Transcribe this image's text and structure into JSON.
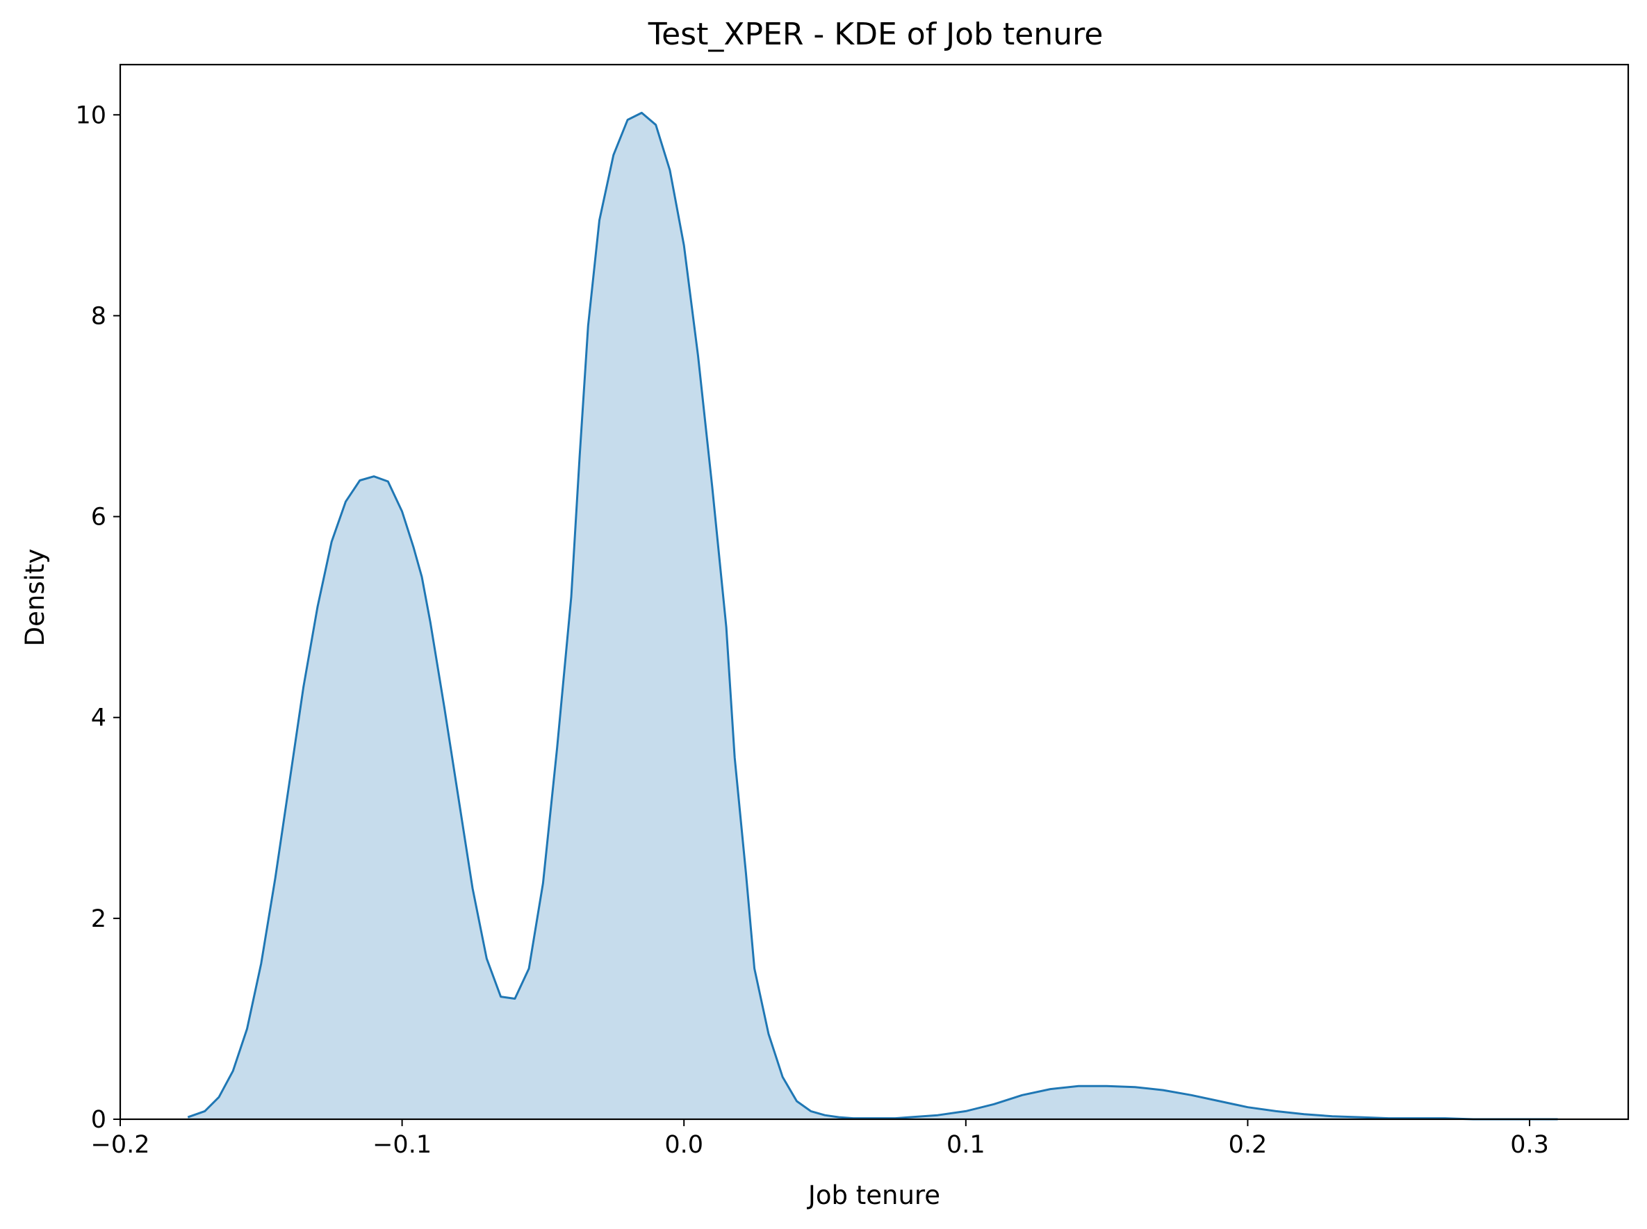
{
  "chart_data": {
    "type": "area",
    "title": "Test_XPER - KDE of Job tenure",
    "xlabel": "Job tenure",
    "ylabel": "Density",
    "xlim": [
      -0.2,
      0.335
    ],
    "ylim": [
      0,
      10.5
    ],
    "xticks": [
      {
        "value": -0.2,
        "label": "−0.2"
      },
      {
        "value": -0.1,
        "label": "−0.1"
      },
      {
        "value": 0.0,
        "label": "0.0"
      },
      {
        "value": 0.1,
        "label": "0.1"
      },
      {
        "value": 0.2,
        "label": "0.2"
      },
      {
        "value": 0.3,
        "label": "0.3"
      }
    ],
    "yticks": [
      {
        "value": 0,
        "label": "0"
      },
      {
        "value": 2,
        "label": "2"
      },
      {
        "value": 4,
        "label": "4"
      },
      {
        "value": 6,
        "label": "6"
      },
      {
        "value": 8,
        "label": "8"
      },
      {
        "value": 10,
        "label": "10"
      }
    ],
    "grid": false,
    "line_color": "#1f77b4",
    "fill_color": "#c6dcec",
    "series": [
      {
        "x": [
          -0.176,
          -0.17,
          -0.165,
          -0.16,
          -0.155,
          -0.15,
          -0.145,
          -0.14,
          -0.135,
          -0.13,
          -0.125,
          -0.12,
          -0.115,
          -0.11,
          -0.105,
          -0.1,
          -0.096,
          -0.093,
          -0.09,
          -0.085,
          -0.08,
          -0.075,
          -0.07,
          -0.065,
          -0.06,
          -0.055,
          -0.05,
          -0.045,
          -0.04,
          -0.037,
          -0.034,
          -0.03,
          -0.025,
          -0.02,
          -0.015,
          -0.01,
          -0.005,
          0.0,
          0.005,
          0.01,
          0.015,
          0.018,
          0.022,
          0.025,
          0.03,
          0.035,
          0.04,
          0.045,
          0.05,
          0.055,
          0.06,
          0.065,
          0.07,
          0.075,
          0.08,
          0.09,
          0.1,
          0.11,
          0.12,
          0.13,
          0.14,
          0.15,
          0.16,
          0.17,
          0.18,
          0.19,
          0.2,
          0.21,
          0.22,
          0.23,
          0.24,
          0.25,
          0.26,
          0.27,
          0.28,
          0.29,
          0.3,
          0.31
        ],
        "y": [
          0.02,
          0.08,
          0.22,
          0.48,
          0.9,
          1.55,
          2.4,
          3.35,
          4.3,
          5.1,
          5.75,
          6.15,
          6.36,
          6.4,
          6.35,
          6.05,
          5.7,
          5.4,
          4.95,
          4.1,
          3.2,
          2.3,
          1.6,
          1.22,
          1.2,
          1.5,
          2.35,
          3.7,
          5.2,
          6.6,
          7.9,
          8.95,
          9.6,
          9.95,
          10.02,
          9.9,
          9.45,
          8.7,
          7.6,
          6.3,
          4.9,
          3.6,
          2.45,
          1.5,
          0.85,
          0.42,
          0.18,
          0.08,
          0.04,
          0.02,
          0.01,
          0.01,
          0.01,
          0.01,
          0.02,
          0.04,
          0.08,
          0.15,
          0.24,
          0.3,
          0.33,
          0.33,
          0.32,
          0.29,
          0.24,
          0.18,
          0.12,
          0.08,
          0.05,
          0.03,
          0.02,
          0.01,
          0.01,
          0.01,
          0.0,
          0.0,
          0.0,
          0.0
        ]
      }
    ]
  }
}
